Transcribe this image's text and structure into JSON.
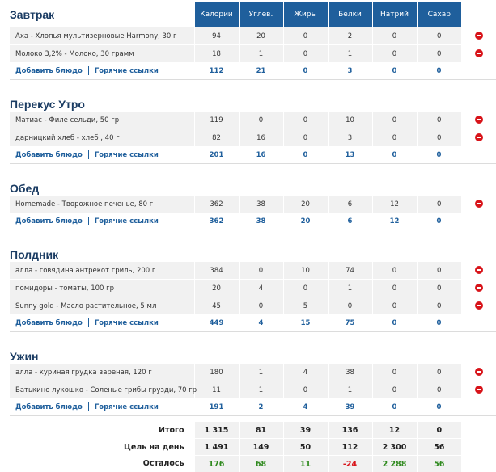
{
  "columns": [
    "Калории",
    "Углев.",
    "Жиры",
    "Белки",
    "Натрий",
    "Сахар"
  ],
  "links": {
    "add": "Добавить блюдо",
    "hot": "Горячие ссылки"
  },
  "meals": [
    {
      "title": "Завтрак",
      "items": [
        {
          "name": "Аха - Хлопья мультизерновые Harmony, 30 г",
          "values": [
            "94",
            "20",
            "0",
            "2",
            "0",
            "0"
          ]
        },
        {
          "name": "Молоко 3,2% - Молоко, 30 грамм",
          "values": [
            "18",
            "1",
            "0",
            "1",
            "0",
            "0"
          ]
        }
      ],
      "totals": [
        "112",
        "21",
        "0",
        "3",
        "0",
        "0"
      ]
    },
    {
      "title": "Перекус Утро",
      "items": [
        {
          "name": "Матиас - Филе сельди, 50 гр",
          "values": [
            "119",
            "0",
            "0",
            "10",
            "0",
            "0"
          ]
        },
        {
          "name": "дарницкий хлеб - хлеб , 40 г",
          "values": [
            "82",
            "16",
            "0",
            "3",
            "0",
            "0"
          ]
        }
      ],
      "totals": [
        "201",
        "16",
        "0",
        "13",
        "0",
        "0"
      ]
    },
    {
      "title": "Обед",
      "items": [
        {
          "name": "Homemade - Творожное печенье, 80 г",
          "values": [
            "362",
            "38",
            "20",
            "6",
            "12",
            "0"
          ]
        }
      ],
      "totals": [
        "362",
        "38",
        "20",
        "6",
        "12",
        "0"
      ]
    },
    {
      "title": "Полдник",
      "items": [
        {
          "name": "алла - говядина антрекот гриль, 200 г",
          "values": [
            "384",
            "0",
            "10",
            "74",
            "0",
            "0"
          ]
        },
        {
          "name": "помидоры - томаты, 100 гр",
          "values": [
            "20",
            "4",
            "0",
            "1",
            "0",
            "0"
          ]
        },
        {
          "name": "Sunny gold - Масло растительное, 5 мл",
          "values": [
            "45",
            "0",
            "5",
            "0",
            "0",
            "0"
          ]
        }
      ],
      "totals": [
        "449",
        "4",
        "15",
        "75",
        "0",
        "0"
      ]
    },
    {
      "title": "Ужин",
      "items": [
        {
          "name": "алла - куриная грудка вареная, 120 г",
          "values": [
            "180",
            "1",
            "4",
            "38",
            "0",
            "0"
          ]
        },
        {
          "name": "Батькино лукошко - Соленые грибы грузди, 70 гр",
          "values": [
            "11",
            "1",
            "0",
            "1",
            "0",
            "0"
          ]
        }
      ],
      "totals": [
        "191",
        "2",
        "4",
        "39",
        "0",
        "0"
      ]
    }
  ],
  "summary": {
    "total": {
      "label": "Итого",
      "values": [
        "1 315",
        "81",
        "39",
        "136",
        "12",
        "0"
      ]
    },
    "goal": {
      "label": "Цель на день",
      "values": [
        "1 491",
        "149",
        "50",
        "112",
        "2 300",
        "56"
      ]
    },
    "remaining": {
      "label": "Осталось",
      "values": [
        "176",
        "68",
        "11",
        "-24",
        "2 288",
        "56"
      ]
    }
  },
  "colors": {
    "header": "#1f5f9c",
    "title": "#1b3c63",
    "positive": "#2f8a1e",
    "negative": "#d8141a"
  }
}
